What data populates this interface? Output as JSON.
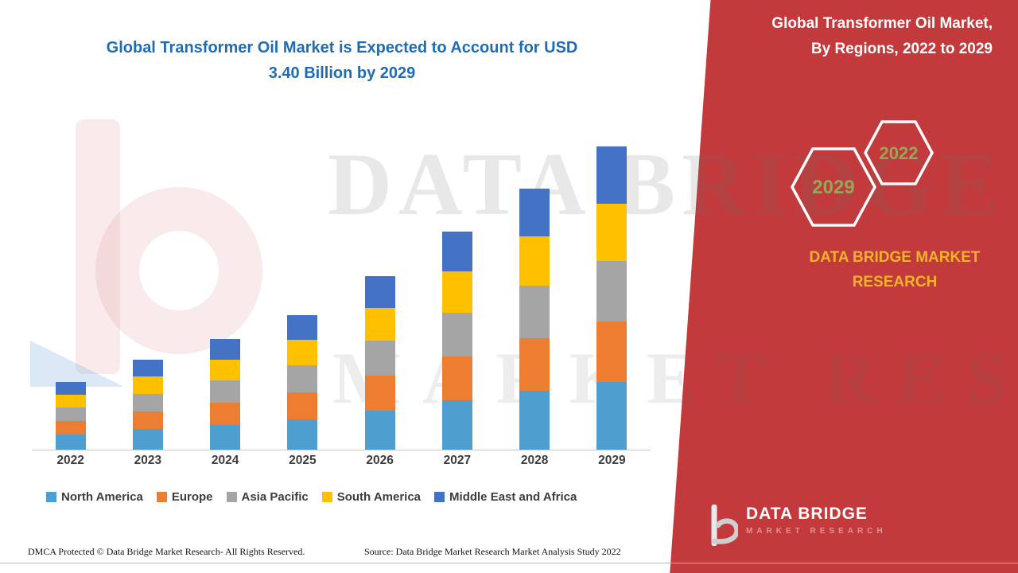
{
  "titles": {
    "left_line1": "Global Transformer Oil Market is Expected to Account for USD",
    "left_line2": "3.40 Billion by 2029",
    "right_line1": "Global Transformer Oil Market,",
    "right_line2": "By Regions, 2022 to 2029"
  },
  "hexagons": {
    "left_label": "2029",
    "right_label": "2022"
  },
  "brand": {
    "yellow_line1": "DATA BRIDGE MARKET",
    "yellow_line2": "RESEARCH",
    "logo_name": "DATA BRIDGE",
    "logo_sub": "MARKET RESEARCH"
  },
  "watermark": {
    "line1": "DATA BRIDGE",
    "line2": "MARKET RESEARCH"
  },
  "footer": {
    "left": "DMCA Protected © Data Bridge Market Research- All Rights Reserved.",
    "source": "Source: Data Bridge Market Research Market Analysis Study 2022"
  },
  "colors": {
    "panel_red": "#c23a3b",
    "title_blue": "#1f6cb5",
    "brand_yellow": "#f2b32c",
    "hex_label_olive": "#9ba457"
  },
  "chart_data": {
    "type": "bar",
    "stacked": true,
    "title": "Global Transformer Oil Market is Expected to Account for USD 3.40 Billion by 2029",
    "subtitle": "Global Transformer Oil Market, By Regions, 2022 to 2029",
    "unit": "USD Billion (estimated from chart, 2029 total = 3.40)",
    "categories": [
      "2022",
      "2023",
      "2024",
      "2025",
      "2026",
      "2027",
      "2028",
      "2029"
    ],
    "series": [
      {
        "name": "North America",
        "color": "#4f9ed0",
        "values": [
          0.17,
          0.23,
          0.28,
          0.34,
          0.44,
          0.55,
          0.66,
          0.76
        ]
      },
      {
        "name": "Europe",
        "color": "#ed7d31",
        "values": [
          0.15,
          0.2,
          0.25,
          0.3,
          0.39,
          0.49,
          0.59,
          0.68
        ]
      },
      {
        "name": "Asia Pacific",
        "color": "#a5a5a5",
        "values": [
          0.15,
          0.2,
          0.25,
          0.3,
          0.39,
          0.49,
          0.59,
          0.68
        ]
      },
      {
        "name": "South America",
        "color": "#ffc000",
        "values": [
          0.14,
          0.2,
          0.23,
          0.29,
          0.37,
          0.46,
          0.55,
          0.64
        ]
      },
      {
        "name": "Middle East and Africa",
        "color": "#4472c4",
        "values": [
          0.14,
          0.19,
          0.23,
          0.28,
          0.36,
          0.45,
          0.54,
          0.64
        ]
      }
    ],
    "totals": [
      0.75,
      1.02,
      1.24,
      1.51,
      1.95,
      2.44,
      2.93,
      3.4
    ],
    "ylim": [
      0,
      3.6
    ],
    "y_axis_visible": false,
    "gridlines": false,
    "legend_position": "bottom"
  }
}
